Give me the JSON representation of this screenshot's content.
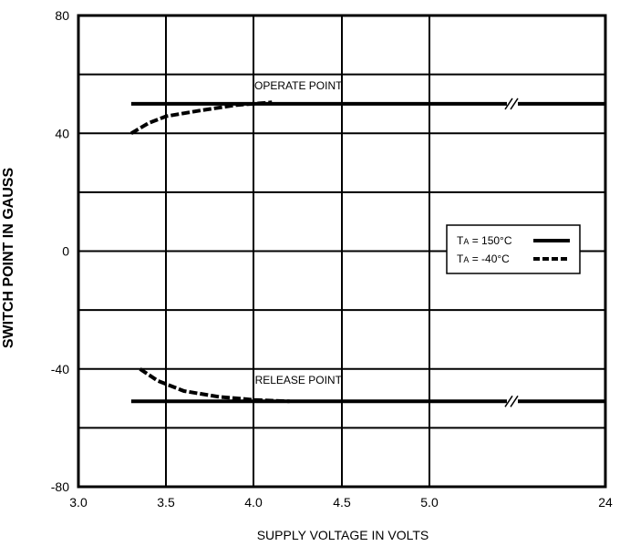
{
  "chart_data": {
    "type": "line",
    "title": "",
    "xlabel": "SUPPLY VOLTAGE IN VOLTS",
    "ylabel": "SWITCH POINT IN GAUSS",
    "x_ticks": [
      "3.0",
      "3.5",
      "4.0",
      "4.5",
      "5.0",
      "24"
    ],
    "y_ticks": [
      "80",
      "40",
      "0",
      "-40",
      "-80"
    ],
    "ylim": [
      -80,
      80
    ],
    "y_gridlines": [
      60,
      40,
      20,
      0,
      -20,
      -40,
      -60
    ],
    "grid": true,
    "legend_placement": "right",
    "axis_break": "between 5.0 and 24",
    "annotations": [
      {
        "text": "OPERATE POINT",
        "x": 4.25,
        "y": 55
      },
      {
        "text": "RELEASE POINT",
        "x": 4.25,
        "y": -45
      }
    ],
    "series": [
      {
        "legend": "Tₐ = 150°C",
        "legend_main": "T",
        "legend_sub": "A",
        "legend_rest": " = 150°C",
        "style": "solid",
        "color": "#000000",
        "curves": [
          {
            "curve": "operate",
            "points": [
              [
                3.3,
                50
              ],
              [
                5.0,
                50
              ],
              [
                24,
                50
              ]
            ]
          },
          {
            "curve": "release",
            "points": [
              [
                3.3,
                -51
              ],
              [
                5.0,
                -51
              ],
              [
                24,
                -51
              ]
            ]
          }
        ]
      },
      {
        "legend": "Tₐ = -40°C",
        "legend_main": "T",
        "legend_sub": "A",
        "legend_rest": " = -40°C",
        "style": "dashed",
        "color": "#000000",
        "curves": [
          {
            "curve": "operate",
            "points": [
              [
                3.3,
                40
              ],
              [
                3.4,
                43.5
              ],
              [
                3.5,
                45.8
              ],
              [
                3.7,
                47.8
              ],
              [
                3.9,
                49.6
              ],
              [
                4.1,
                50.5
              ]
            ]
          },
          {
            "curve": "release",
            "points": [
              [
                3.35,
                -40
              ],
              [
                3.45,
                -44
              ],
              [
                3.6,
                -47.5
              ],
              [
                3.8,
                -49.5
              ],
              [
                4.0,
                -50.5
              ],
              [
                4.2,
                -51
              ]
            ]
          }
        ]
      }
    ]
  }
}
